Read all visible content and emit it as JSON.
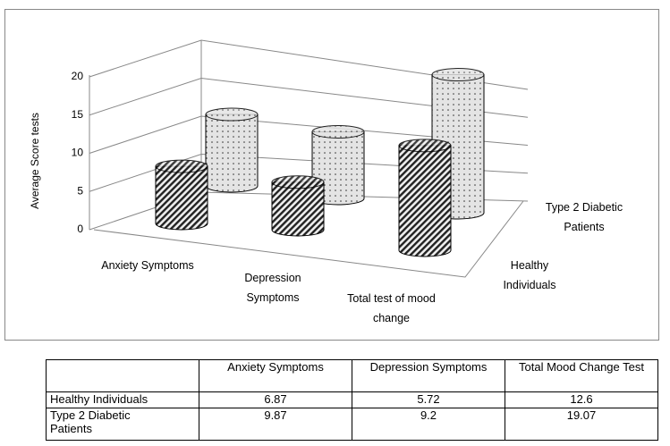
{
  "chart_data": {
    "type": "cylinder3d",
    "y_label": "Average Score tests",
    "categories": [
      "Anxiety Symptoms",
      "Depression Symptoms",
      "Total test of mood change"
    ],
    "series": [
      {
        "name": "Healthy Individuals",
        "pattern": "stripes",
        "values": [
          6.87,
          5.72,
          12.6
        ]
      },
      {
        "name": "Type 2 Diabetic Patients",
        "pattern": "dots",
        "values": [
          9.87,
          9.2,
          19.07
        ]
      }
    ],
    "ylim": [
      0,
      20
    ],
    "yticks": [
      0,
      5,
      10,
      15,
      20
    ],
    "grid": true
  },
  "table": {
    "columns": [
      "Anxiety Symptoms",
      "Depression Symptoms",
      "Total Mood Change Test"
    ]
  }
}
